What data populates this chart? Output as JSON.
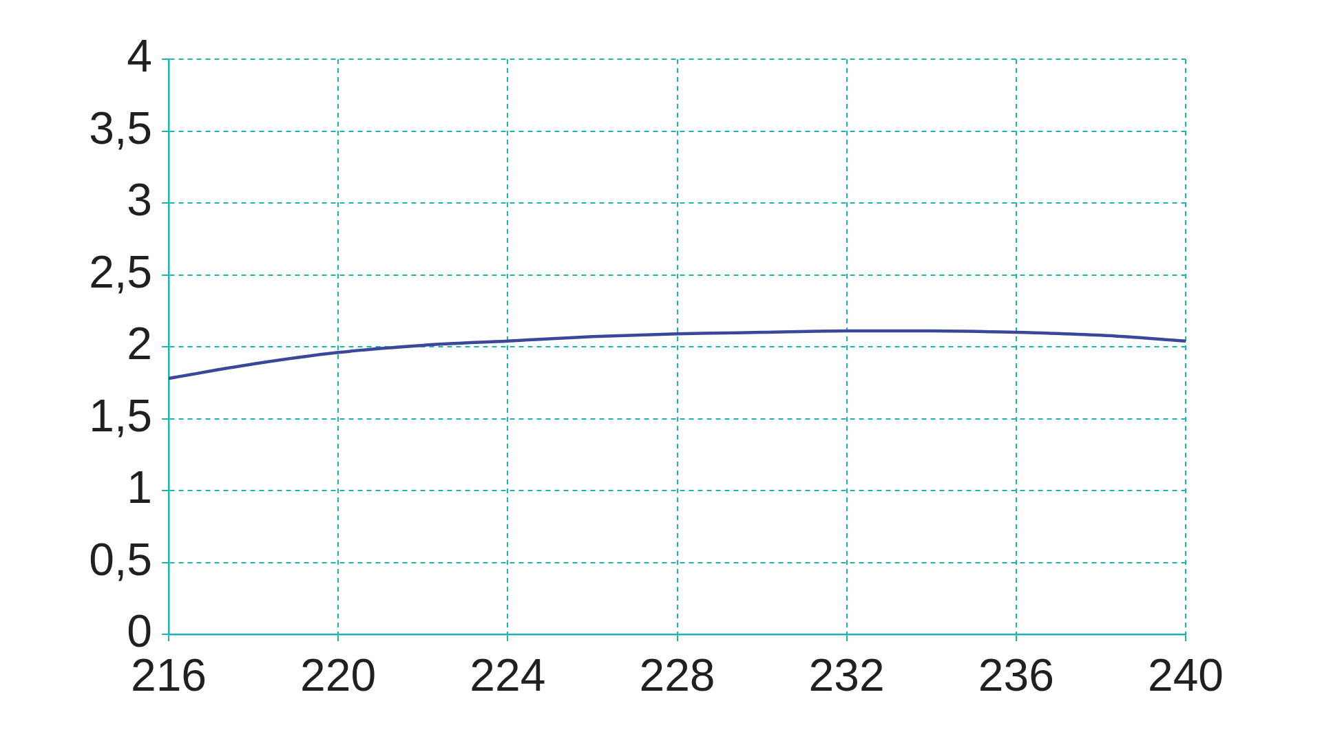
{
  "chart_data": {
    "type": "line",
    "x": [
      216,
      218,
      220,
      222,
      224,
      226,
      228,
      230,
      232,
      234,
      236,
      238,
      240
    ],
    "values": [
      1.78,
      1.88,
      1.96,
      2.01,
      2.04,
      2.07,
      2.09,
      2.1,
      2.11,
      2.11,
      2.1,
      2.08,
      2.04
    ],
    "color": "#3a479a",
    "xlim": [
      216,
      240
    ],
    "xticks": [
      216,
      220,
      224,
      228,
      232,
      236,
      240
    ],
    "ylim": [
      0,
      4
    ],
    "yticks": [
      0,
      {
        "value": 0.5,
        "label": "0,5"
      },
      1,
      {
        "value": 1.5,
        "label": "1,5"
      },
      2,
      {
        "value": 2.5,
        "label": "2,5"
      },
      3,
      {
        "value": 3.5,
        "label": "3,5"
      },
      4
    ],
    "grid": true,
    "marker": "none",
    "line_style": "solid"
  }
}
